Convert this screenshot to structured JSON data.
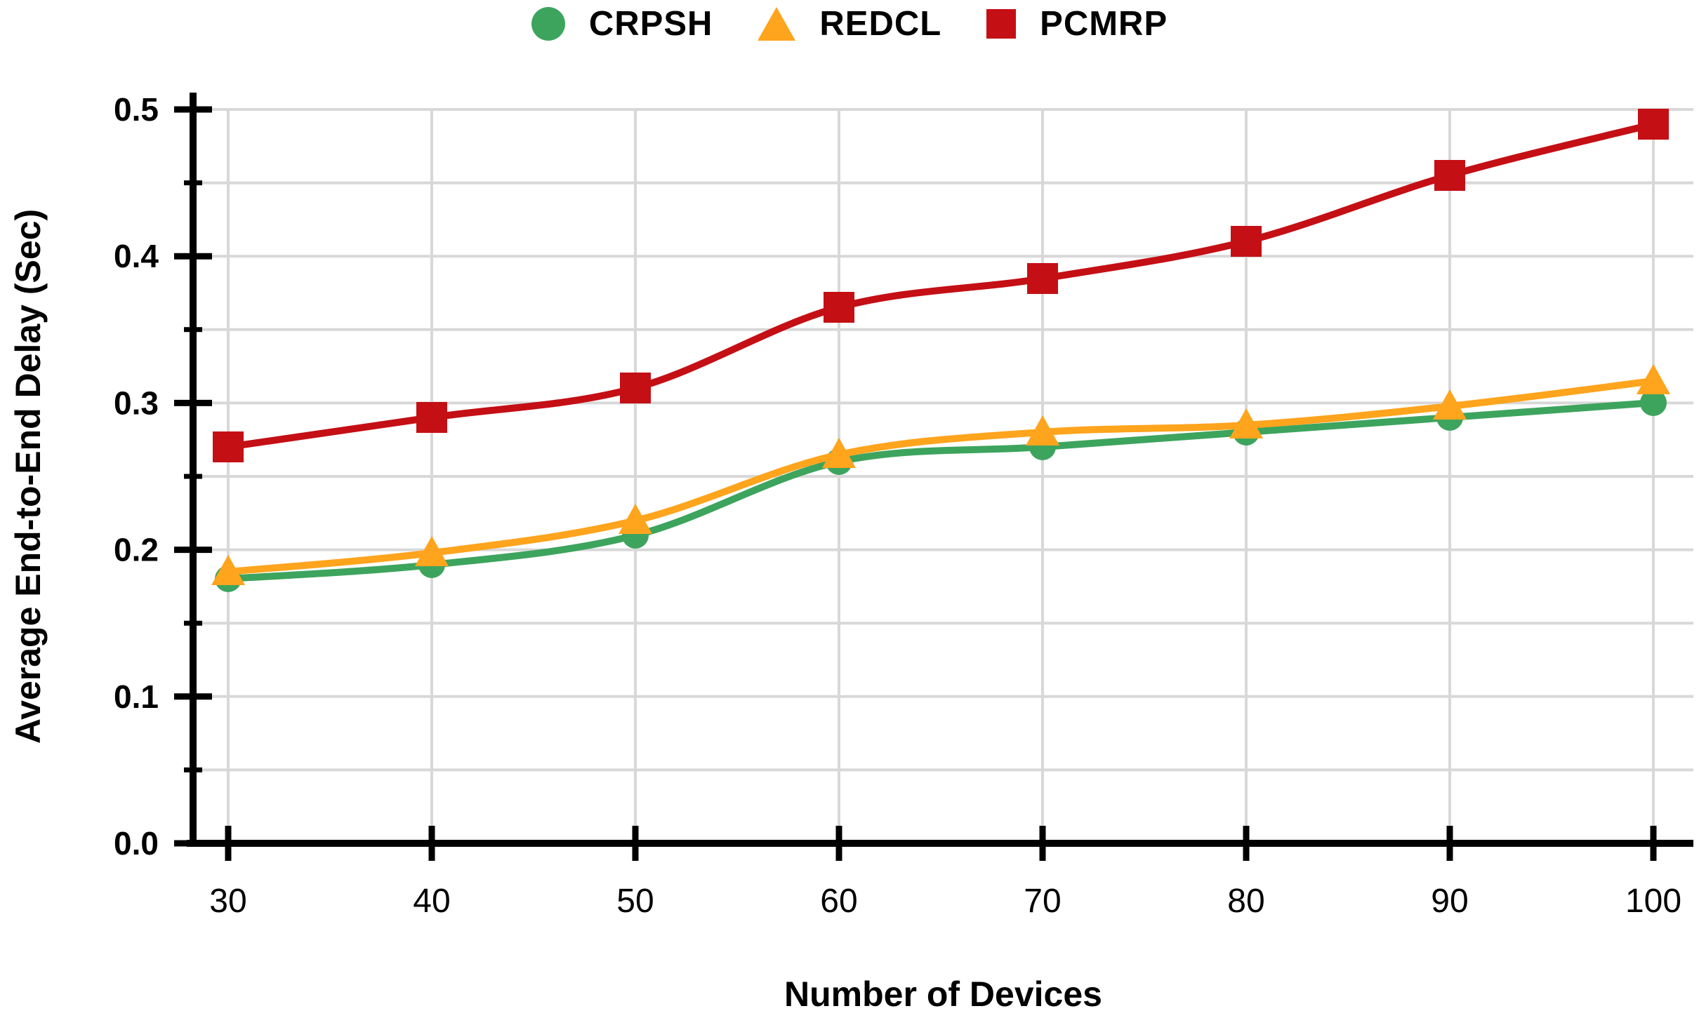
{
  "figure": {
    "background": "#ffffff"
  },
  "chart_data": {
    "type": "line",
    "title": "",
    "xlabel": "Number of Devices",
    "ylabel": "Average End-to-End Delay (Sec)",
    "categories": [
      30,
      40,
      50,
      60,
      70,
      80,
      90,
      100
    ],
    "x_tick_labels": [
      "30",
      "40",
      "50",
      "60",
      "70",
      "80",
      "90",
      "100"
    ],
    "y_ticks": [
      0.0,
      0.1,
      0.2,
      0.3,
      0.4,
      0.5
    ],
    "y_tick_labels": [
      "0.0",
      "0.1",
      "0.2",
      "0.3",
      "0.4",
      "0.5"
    ],
    "y_minor_tick_step": 0.05,
    "ylim": [
      0.0,
      0.5
    ],
    "grid": true,
    "grid_interval": 0.05,
    "legend_position": "top-center",
    "series": [
      {
        "name": "CRPSH",
        "marker": "circle",
        "color": "#3da45e",
        "values": [
          0.18,
          0.19,
          0.21,
          0.26,
          0.27,
          0.28,
          0.29,
          0.3
        ]
      },
      {
        "name": "REDCL",
        "marker": "triangle",
        "color": "#ffa41d",
        "values": [
          0.185,
          0.198,
          0.22,
          0.265,
          0.28,
          0.285,
          0.298,
          0.315
        ]
      },
      {
        "name": "PCMRP",
        "marker": "square",
        "color": "#c40f15",
        "values": [
          0.27,
          0.29,
          0.31,
          0.365,
          0.385,
          0.41,
          0.455,
          0.49
        ]
      }
    ],
    "colors": {
      "grid": "#d8d8d8",
      "axis": "#000000",
      "text": "#000000"
    }
  }
}
